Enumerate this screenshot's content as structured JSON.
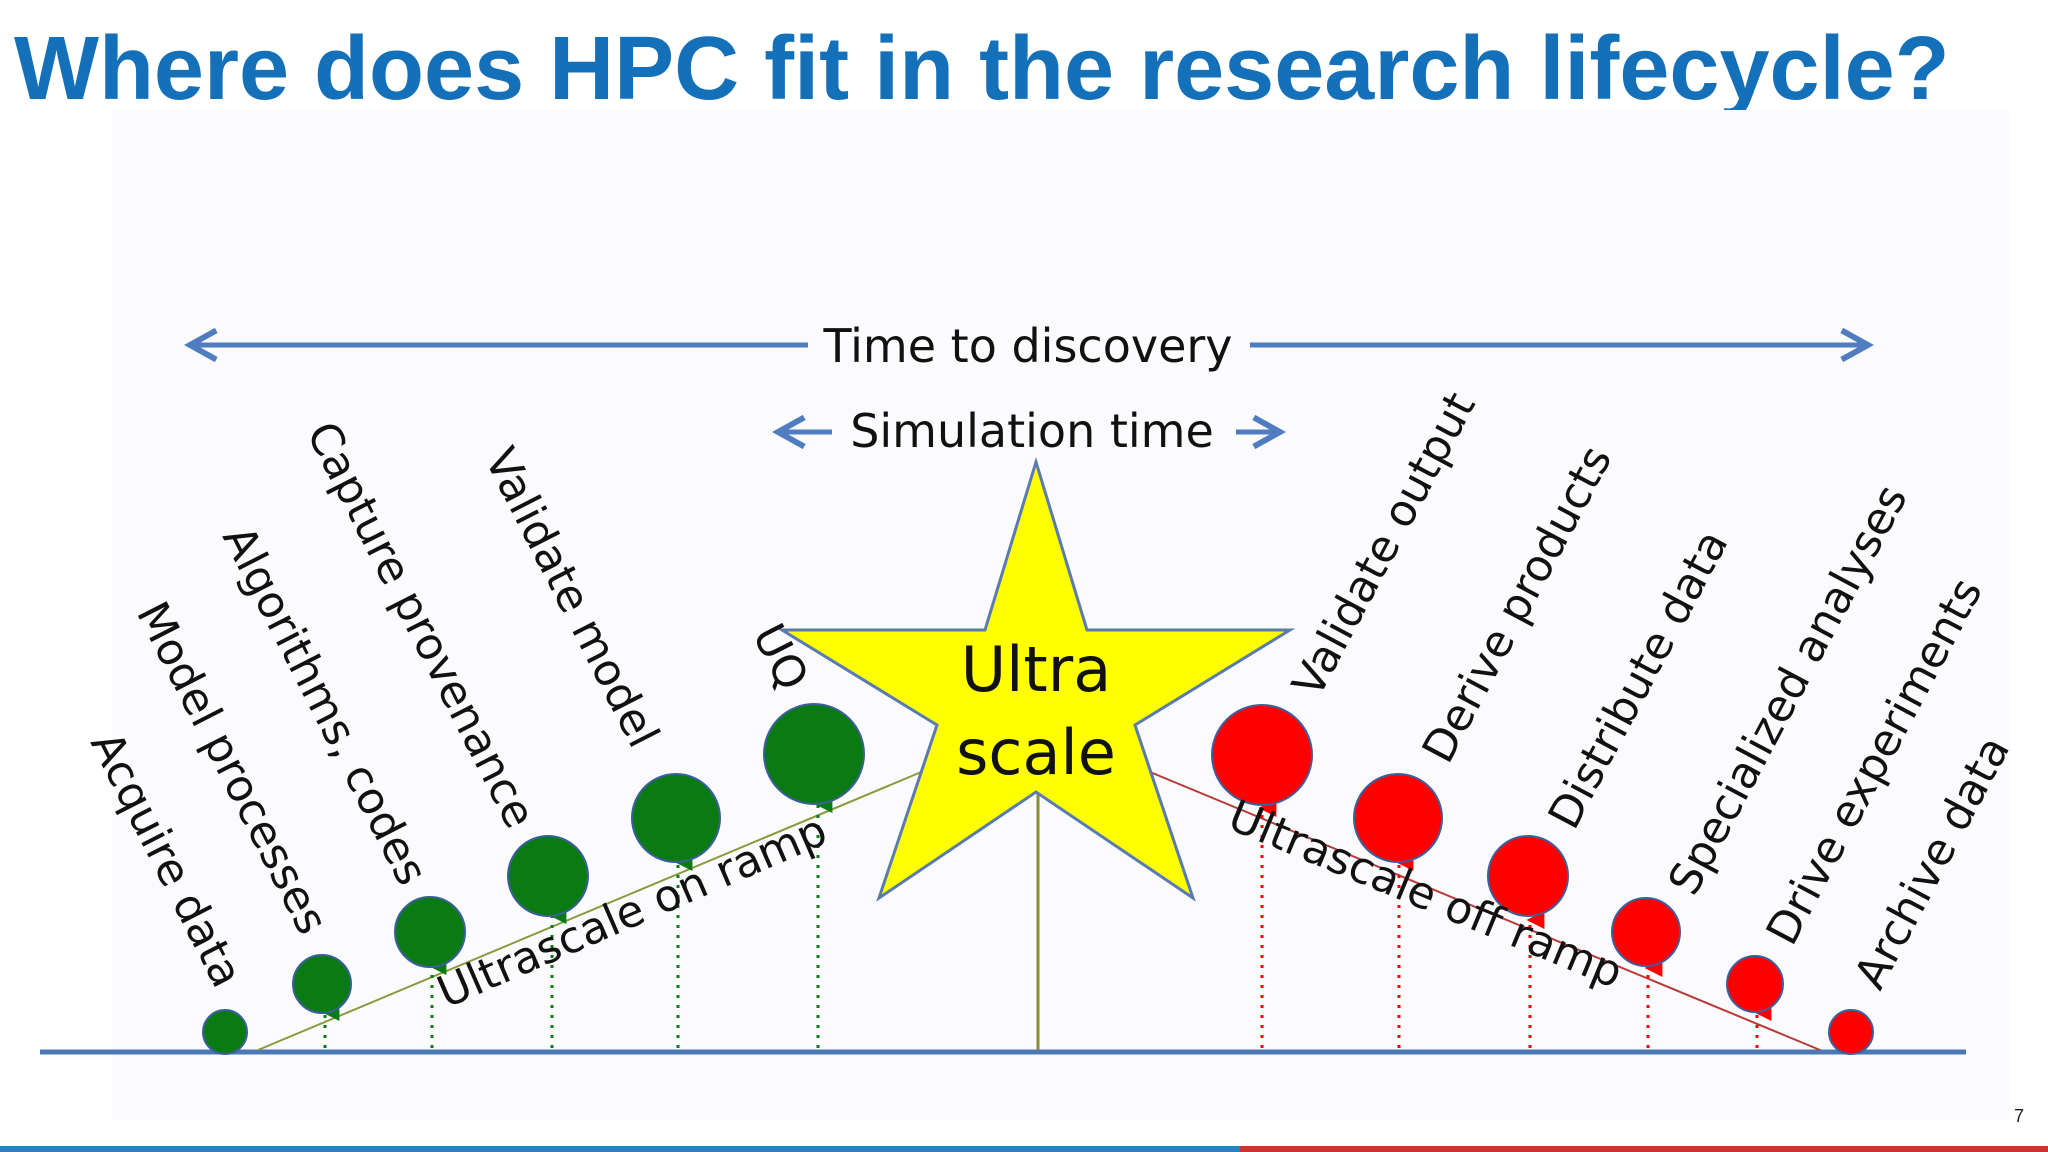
{
  "slide": {
    "title": "Where does HPC fit in the research lifecycle?",
    "page_number": "7"
  },
  "diagram": {
    "time_to_discovery_label": "Time to discovery",
    "simulation_time_label": "Simulation time",
    "center_label": [
      "Ultra",
      "scale"
    ],
    "on_ramp_label": "Ultrascale on ramp",
    "off_ramp_label": "Ultrascale off ramp",
    "on_ramp_stages": [
      "Acquire data",
      "Model processes",
      "Algorithms, codes",
      "Capture provenance",
      "Validate model",
      "UQ"
    ],
    "off_ramp_stages": [
      "Validate output",
      "Derive products",
      "Distribute data",
      "Specialized analyses",
      "Drive experiments",
      "Archive data"
    ]
  },
  "colors": {
    "title": "#1470b8",
    "arrow": "#4f7dbf",
    "baseline": "#4a78b5",
    "on_ramp": "#0a7a12",
    "off_ramp": "#ff0000",
    "star_fill": "#ffff00",
    "on_ramp_line": "#8a9a3c",
    "off_ramp_line": "#b83a3a"
  }
}
